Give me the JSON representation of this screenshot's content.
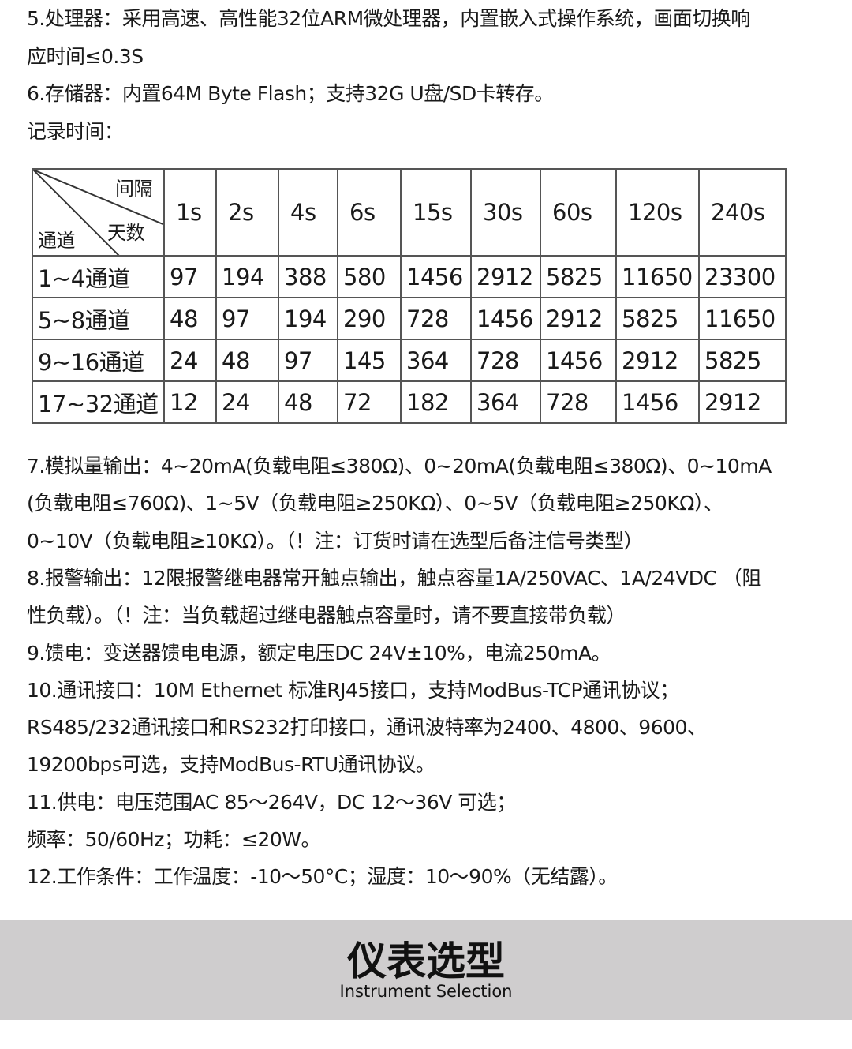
{
  "spec_lines_top": [
    "5.处理器：采用高速、高性能32位ARM微处理器，内置嵌入式操作系统，画面切换响",
    "应时间≤0.3S",
    "6.存储器：内置64M Byte Flash；支持32G U盘/SD卡转存。",
    "记录时间："
  ],
  "record_table": {
    "corner": {
      "interval": "间隔",
      "days": "天数",
      "channel": "通道"
    },
    "intervals": [
      "1s",
      "2s",
      "4s",
      "6s",
      "15s",
      "30s",
      "60s",
      "120s",
      "240s"
    ],
    "rows": [
      {
        "channel": "1~4通道",
        "values": [
          "97",
          "194",
          "388",
          "580",
          "1456",
          "2912",
          "5825",
          "11650",
          "23300"
        ]
      },
      {
        "channel": "5~8通道",
        "values": [
          "48",
          "97",
          "194",
          "290",
          "728",
          "1456",
          "2912",
          "5825",
          "11650"
        ]
      },
      {
        "channel": "9~16通道",
        "values": [
          "24",
          "48",
          "97",
          "145",
          "364",
          "728",
          "1456",
          "2912",
          "5825"
        ]
      },
      {
        "channel": "17~32通道",
        "values": [
          "12",
          "24",
          "48",
          "72",
          "182",
          "364",
          "728",
          "1456",
          "2912"
        ]
      }
    ]
  },
  "spec_lines_bottom": [
    "7.模拟量输出：4~20mA(负载电阻≤380Ω)、0~20mA(负载电阻≤380Ω)、0~10mA",
    "(负载电阻≤760Ω)、1~5V（负载电阻≥250KΩ）、0~5V（负载电阻≥250KΩ）、",
    "0~10V（负载电阻≥10KΩ）。（！注：订货时请在选型后备注信号类型）",
    "8.报警输出：12限报警继电器常开触点输出，触点容量1A/250VAC、1A/24VDC （阻",
    "性负载）。（！注：当负载超过继电器触点容量时，请不要直接带负载）",
    " 9.馈电：变送器馈电电源，额定电压DC 24V±10%，电流250mA。",
    "10.通讯接口：10M  Ethernet 标准RJ45接口，支持ModBus-TCP通讯协议；",
    "RS485/232通讯接口和RS232打印接口，通讯波特率为2400、4800、9600、",
    "19200bps可选，支持ModBus-RTU通讯协议。",
    "11.供电：电压范围AC 85～264V，DC 12～36V 可选；",
    "频率：50/60Hz；功耗：≤20W。",
    "12.工作条件：工作温度：-10～50°C；湿度：10～90%（无结露）。"
  ],
  "banner": {
    "title": "仪表选型",
    "subtitle": "Instrument Selection",
    "background": "#cfcdce"
  }
}
